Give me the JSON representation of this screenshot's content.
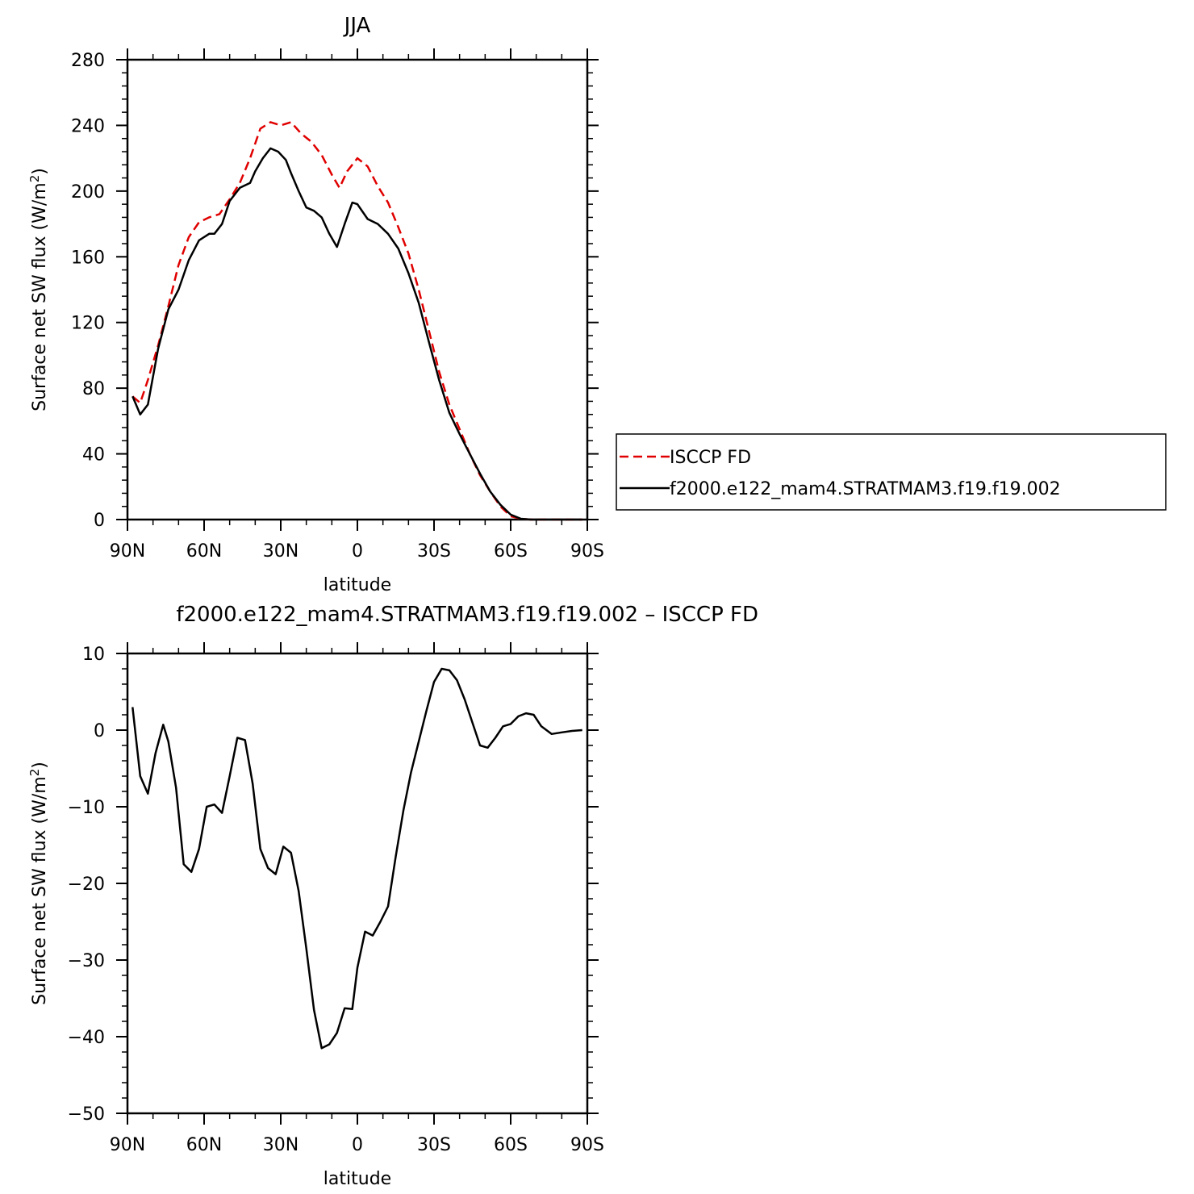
{
  "chart_data": [
    {
      "type": "line",
      "title": "JJA",
      "xlabel": "latitude",
      "ylabel": "Surface net SW flux (W/m",
      "ylabel_sup": "2",
      "ylabel_end": ")",
      "xlim": [
        90,
        -90
      ],
      "ylim": [
        0,
        280
      ],
      "xticks": [
        90,
        60,
        30,
        0,
        -30,
        -60,
        -90
      ],
      "xtick_labels": [
        "90N",
        "60N",
        "30N",
        "0",
        "30S",
        "60S",
        "90S"
      ],
      "yticks": [
        0,
        40,
        80,
        120,
        160,
        200,
        240,
        280
      ],
      "ytick_labels": [
        "0",
        "40",
        "80",
        "120",
        "160",
        "200",
        "240",
        "280"
      ],
      "legend_placement": "right",
      "series": [
        {
          "name": "ISCCP FD",
          "color": "#e00000",
          "dash": "dashed",
          "x": [
            88,
            85,
            82,
            78,
            74,
            70,
            66,
            62,
            58,
            54,
            50,
            46,
            42,
            38,
            34,
            30,
            26,
            22,
            18,
            14,
            10,
            7,
            4,
            0,
            -4,
            -8,
            -12,
            -16,
            -20,
            -24,
            -28,
            -32,
            -36,
            -40,
            -44,
            -48,
            -52,
            -56,
            -60,
            -64,
            -68,
            -72,
            -76,
            -80,
            -84,
            -88
          ],
          "y": [
            75,
            71,
            85,
            106,
            130,
            155,
            172,
            181,
            184,
            186,
            195,
            205,
            220,
            238,
            242,
            240,
            242,
            235,
            230,
            222,
            210,
            202,
            212,
            220,
            215,
            203,
            193,
            178,
            162,
            140,
            115,
            90,
            70,
            55,
            40,
            27,
            17,
            8,
            2,
            0.5,
            0,
            0,
            0,
            0,
            0,
            0
          ]
        },
        {
          "name": "f2000.e122_mam4.STRATMAM3.f19.f19.002",
          "color": "#000000",
          "dash": "solid",
          "x": [
            88,
            85,
            82,
            78,
            74,
            70,
            66,
            62,
            58,
            56,
            53,
            50,
            46,
            42,
            40,
            37,
            34,
            31,
            28,
            26,
            23,
            20,
            17,
            14,
            11,
            8,
            5,
            2,
            0,
            -4,
            -8,
            -12,
            -16,
            -20,
            -24,
            -28,
            -32,
            -36,
            -40,
            -44,
            -48,
            -52,
            -56,
            -60,
            -64,
            -68,
            -72,
            -76,
            -80,
            -84,
            -88
          ],
          "y": [
            75,
            64,
            70,
            104,
            128,
            140,
            158,
            170,
            174,
            174,
            180,
            194,
            202,
            205,
            212,
            220,
            226,
            224,
            219,
            211,
            200,
            190,
            188,
            184,
            174,
            166,
            180,
            193,
            192,
            183,
            180,
            174,
            165,
            150,
            132,
            108,
            85,
            65,
            52,
            40,
            28,
            17,
            9,
            3,
            0.5,
            0,
            0,
            0,
            0,
            0,
            0
          ]
        }
      ]
    },
    {
      "type": "line",
      "title": "f2000.e122_mam4.STRATMAM3.f19.f19.002 – ISCCP FD",
      "xlabel": "latitude",
      "ylabel": "Surface net SW flux (W/m",
      "ylabel_sup": "2",
      "ylabel_end": ")",
      "xlim": [
        90,
        -90
      ],
      "ylim": [
        -50,
        10
      ],
      "xticks": [
        90,
        60,
        30,
        0,
        -30,
        -60,
        -90
      ],
      "xtick_labels": [
        "90N",
        "60N",
        "30N",
        "0",
        "30S",
        "60S",
        "90S"
      ],
      "yticks": [
        -50,
        -40,
        -30,
        -20,
        -10,
        0,
        10
      ],
      "ytick_labels": [
        "−50",
        "−40",
        "−30",
        "−20",
        "−10",
        "0",
        "10"
      ],
      "series": [
        {
          "color": "#000000",
          "dash": "solid",
          "x": [
            88,
            85,
            82,
            79,
            76,
            74,
            71,
            68,
            65,
            62,
            59,
            56,
            53,
            50,
            47,
            44,
            41,
            38,
            35,
            32,
            29,
            26,
            23,
            20,
            17,
            14,
            11,
            8,
            5,
            2,
            0,
            -3,
            -6,
            -9,
            -12,
            -15,
            -18,
            -21,
            -24,
            -27,
            -30,
            -33,
            -36,
            -39,
            -42,
            -45,
            -48,
            -51,
            -54,
            -57,
            -60,
            -63,
            -66,
            -69,
            -72,
            -76,
            -80,
            -84,
            -88
          ],
          "y": [
            3,
            -6,
            -8.3,
            -3,
            0.7,
            -1.5,
            -7.5,
            -17.5,
            -18.5,
            -15.5,
            -10,
            -9.7,
            -10.8,
            -6,
            -1,
            -1.3,
            -7,
            -15.5,
            -18,
            -18.8,
            -15.2,
            -16,
            -21,
            -28.5,
            -36.5,
            -41.5,
            -41,
            -39.5,
            -36.3,
            -36.4,
            -31,
            -26.3,
            -26.8,
            -25,
            -23,
            -16.5,
            -10.5,
            -5.5,
            -1.5,
            2.5,
            6.3,
            8,
            7.8,
            6.5,
            4,
            1,
            -2,
            -2.3,
            -1,
            0.5,
            0.8,
            1.8,
            2.2,
            2,
            0.5,
            -0.5,
            -0.3,
            -0.1,
            0
          ]
        }
      ]
    }
  ]
}
